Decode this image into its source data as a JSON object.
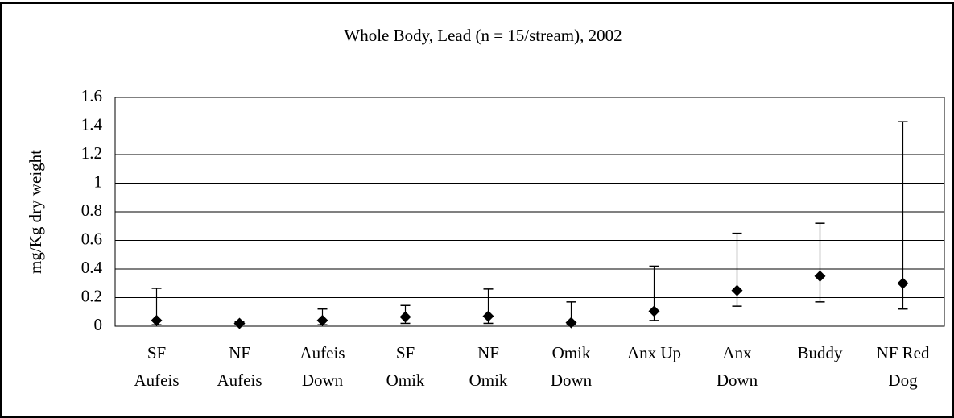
{
  "chart_data": {
    "type": "dot",
    "title": "Whole Body, Lead (n = 15/stream), 2002",
    "y_label": "mg/Kg dry weight",
    "categories": [
      [
        "SF",
        "Aufeis"
      ],
      [
        "NF",
        "Aufeis"
      ],
      [
        "Aufeis",
        "Down"
      ],
      [
        "SF",
        "Omik"
      ],
      [
        "NF",
        "Omik"
      ],
      [
        "Omik",
        "Down"
      ],
      [
        "Anx Up"
      ],
      [
        "Anx",
        "Down"
      ],
      [
        "Buddy"
      ],
      [
        "NF Red",
        "Dog"
      ]
    ],
    "values": [
      0.04,
      0.02,
      0.04,
      0.065,
      0.07,
      0.025,
      0.105,
      0.25,
      0.35,
      0.3
    ],
    "low": [
      0.01,
      0.01,
      0.01,
      0.02,
      0.02,
      0.01,
      0.04,
      0.14,
      0.17,
      0.12
    ],
    "high": [
      0.265,
      0.03,
      0.12,
      0.145,
      0.26,
      0.17,
      0.42,
      0.65,
      0.72,
      1.43
    ],
    "color": "#000000",
    "ylim": [
      0,
      1.6
    ],
    "yticks": [
      0,
      0.2,
      0.4,
      0.6,
      0.8,
      1,
      1.2,
      1.4,
      1.6
    ],
    "grid": true
  }
}
